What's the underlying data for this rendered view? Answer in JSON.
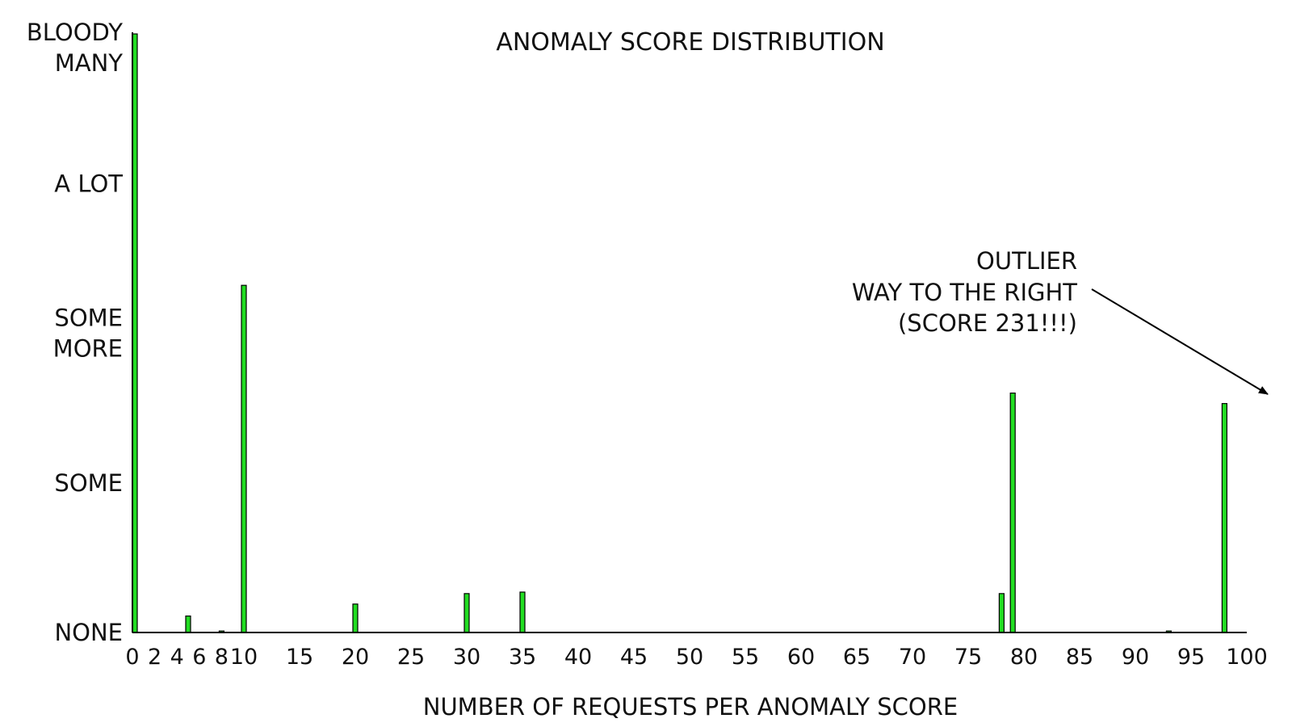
{
  "chart_data": {
    "type": "bar",
    "title": "ANOMALY SCORE DISTRIBUTION",
    "xlabel": "NUMBER OF REQUESTS PER ANOMALY SCORE",
    "ylabel": "",
    "xlim": [
      0,
      100
    ],
    "ylim": [
      0,
      4
    ],
    "bar_color": "#22dd22",
    "grid": false,
    "x_ticks": [
      0,
      2,
      4,
      6,
      8,
      10,
      15,
      20,
      25,
      30,
      35,
      40,
      45,
      50,
      55,
      60,
      65,
      70,
      75,
      80,
      85,
      90,
      95,
      100
    ],
    "y_ticks": [
      {
        "value": 0,
        "lines": [
          "NONE"
        ]
      },
      {
        "value": 1,
        "lines": [
          "SOME"
        ]
      },
      {
        "value": 2,
        "lines": [
          "SOME",
          "MORE"
        ]
      },
      {
        "value": 3,
        "lines": [
          "A LOT"
        ]
      },
      {
        "value": 4,
        "lines": [
          "BLOODY",
          "MANY"
        ]
      }
    ],
    "bars": [
      {
        "x": 0,
        "y": 4.0
      },
      {
        "x": 5,
        "y": 0.11
      },
      {
        "x": 8,
        "y": 0.01
      },
      {
        "x": 10,
        "y": 2.32
      },
      {
        "x": 20,
        "y": 0.19
      },
      {
        "x": 30,
        "y": 0.26
      },
      {
        "x": 35,
        "y": 0.27
      },
      {
        "x": 78,
        "y": 0.26
      },
      {
        "x": 79,
        "y": 1.6
      },
      {
        "x": 93,
        "y": 0.01
      },
      {
        "x": 98,
        "y": 1.53
      }
    ],
    "annotation": {
      "lines": [
        "OUTLIER",
        "WAY TO THE RIGHT",
        "(SCORE 231!!!)"
      ]
    }
  }
}
